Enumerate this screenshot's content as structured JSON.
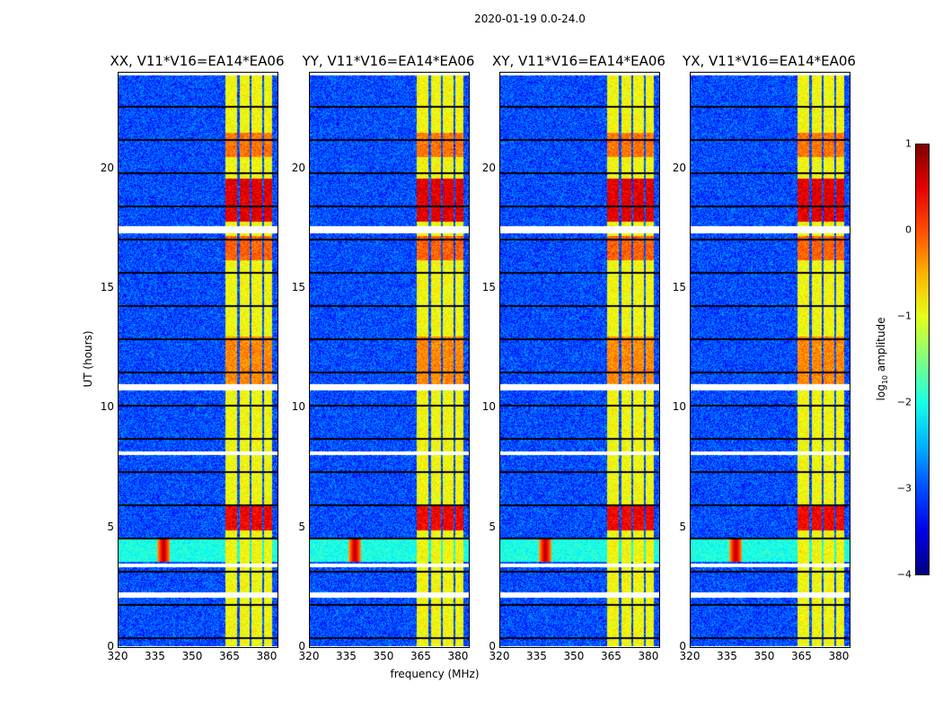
{
  "chart_data": {
    "type": "heatmap",
    "suptitle": "2020-01-19 0.0-24.0",
    "xlabel": "frequency (MHz)",
    "ylabel": "UT (hours)",
    "xlim": [
      320,
      384
    ],
    "ylim": [
      0,
      24
    ],
    "xticks": [
      "320",
      "335",
      "350",
      "365",
      "380"
    ],
    "xtick_values": [
      320,
      335,
      350,
      365,
      380
    ],
    "yticks": [
      "0",
      "5",
      "10",
      "15",
      "20"
    ],
    "ytick_values": [
      0,
      5,
      10,
      15,
      20
    ],
    "panels": [
      {
        "title": "XX, V11*V16=EA14*EA06"
      },
      {
        "title": "YY, V11*V16=EA14*EA06"
      },
      {
        "title": "XY, V11*V16=EA14*EA06"
      },
      {
        "title": "YX, V11*V16=EA14*EA06"
      }
    ],
    "background_log10_amplitude": -3.0,
    "rfi_channels_mhz": [
      [
        363,
        367.5
      ],
      [
        368.5,
        372.5
      ],
      [
        373.5,
        377.5
      ],
      [
        378.5,
        381.5
      ]
    ],
    "rfi_log10_amplitude": -0.9,
    "strong_rfi_times_hours": [
      {
        "range": [
          17.8,
          19.6
        ],
        "log10_amplitude": 0.5
      },
      {
        "range": [
          4.9,
          5.9
        ],
        "log10_amplitude": 0.4
      },
      {
        "range": [
          11.0,
          13.0
        ],
        "log10_amplitude": -0.3
      },
      {
        "range": [
          16.2,
          17.2
        ],
        "log10_amplitude": -0.1
      },
      {
        "range": [
          20.5,
          21.5
        ],
        "log10_amplitude": -0.2
      }
    ],
    "broadband_event": {
      "time_range": [
        3.6,
        4.6
      ],
      "log10_amplitude": -2.0,
      "peak_mhz": 338,
      "peak_log10_amplitude": 0.8
    },
    "flagged_times_hours": [
      [
        0.0,
        0.05
      ],
      [
        2.1,
        2.3
      ],
      [
        3.35,
        3.5
      ],
      [
        8.05,
        8.2
      ],
      [
        10.75,
        11.0
      ],
      [
        17.3,
        17.6
      ],
      [
        23.9,
        24.0
      ]
    ],
    "colorbar": {
      "label": "log10 amplitude",
      "label_main": "log",
      "label_sub": "10",
      "label_rest": " amplitude",
      "ticks": [
        "1",
        "0",
        "−1",
        "−2",
        "−3",
        "−4"
      ],
      "tick_values": [
        1,
        0,
        -1,
        -2,
        -3,
        -4
      ],
      "range": [
        -4,
        1
      ],
      "colormap": "jet"
    }
  }
}
